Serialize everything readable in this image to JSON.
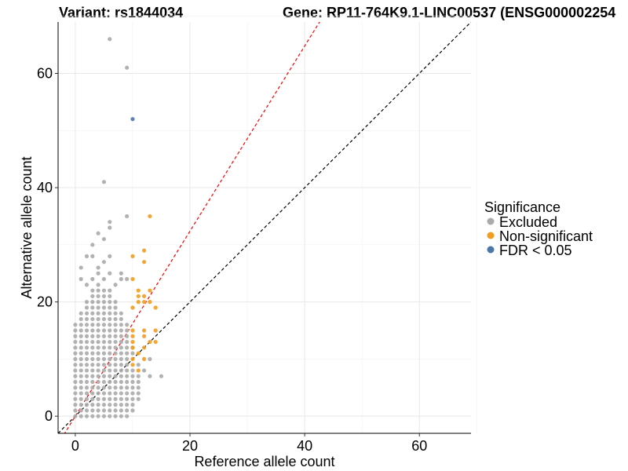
{
  "chart_data": {
    "type": "scatter",
    "title_left": "Variant: rs1844034",
    "title_right": "Gene: RP11-764K9.1-LINC00537 (ENSG000002254",
    "xlabel": "Reference allele count",
    "ylabel": "Alternative allele count",
    "xlim": [
      -3,
      69
    ],
    "ylim": [
      -3,
      69
    ],
    "x_ticks": [
      0,
      20,
      40,
      60
    ],
    "y_ticks": [
      0,
      20,
      40,
      60
    ],
    "x_tick_labels": [
      "0",
      "20",
      "40",
      "60"
    ],
    "y_tick_labels": [
      "0",
      "20",
      "40",
      "60"
    ],
    "grid": true,
    "legend": {
      "title": "Significance",
      "placement": "right",
      "entries": [
        {
          "label": "Excluded",
          "color": "#aaaaaa"
        },
        {
          "label": "Non-significant",
          "color": "#f39c1f"
        },
        {
          "label": "FDR < 0.05",
          "color": "#4a76a8"
        }
      ]
    },
    "reference_lines": [
      {
        "name": "identity",
        "slope": 1,
        "intercept": 0,
        "color": "#000000",
        "dashed": true
      },
      {
        "name": "fit",
        "slope": 1.62,
        "intercept": 0,
        "color": "#ff0000",
        "dashed": true
      }
    ],
    "excluded_grid": [
      {
        "x": 0,
        "ymax": 16
      },
      {
        "x": 1,
        "ymax": 18
      },
      {
        "x": 2,
        "ymax": 20
      },
      {
        "x": 3,
        "ymax": 22
      },
      {
        "x": 4,
        "ymax": 22
      },
      {
        "x": 5,
        "ymax": 22
      },
      {
        "x": 6,
        "ymax": 22
      },
      {
        "x": 7,
        "ymax": 20
      },
      {
        "x": 8,
        "ymax": 18
      },
      {
        "x": 9,
        "ymax": 16
      },
      {
        "x": 10,
        "ymin": 1,
        "ymax": 10
      },
      {
        "x": 11,
        "ymin": 3,
        "ymax": 9
      }
    ],
    "series": [
      {
        "name": "Excluded",
        "color": "#aaaaaa",
        "points": [
          [
            6,
            66
          ],
          [
            9,
            61
          ],
          [
            5,
            41
          ],
          [
            9,
            35
          ],
          [
            6,
            34
          ],
          [
            6,
            33
          ],
          [
            4,
            32
          ],
          [
            5,
            31
          ],
          [
            3,
            30
          ],
          [
            2,
            28
          ],
          [
            3,
            28
          ],
          [
            6,
            28
          ],
          [
            5,
            27
          ],
          [
            1,
            26
          ],
          [
            4,
            26
          ],
          [
            4,
            25
          ],
          [
            6,
            25
          ],
          [
            8,
            25
          ],
          [
            1,
            24
          ],
          [
            3,
            24
          ],
          [
            5,
            24
          ],
          [
            8,
            24
          ],
          [
            9,
            24
          ],
          [
            2,
            23
          ],
          [
            7,
            23
          ],
          [
            4,
            23
          ],
          [
            13,
            10
          ],
          [
            10,
            11
          ],
          [
            10,
            12
          ],
          [
            12,
            8
          ],
          [
            13,
            7
          ],
          [
            15,
            7
          ],
          [
            9,
            8
          ],
          [
            7,
            3
          ],
          [
            8,
            1
          ],
          [
            9,
            4
          ],
          [
            10,
            3
          ],
          [
            10,
            2
          ],
          [
            8,
            7
          ]
        ]
      },
      {
        "name": "Non-significant",
        "color": "#f39c1f",
        "points": [
          [
            13,
            35
          ],
          [
            12,
            29
          ],
          [
            10,
            28
          ],
          [
            12,
            27
          ],
          [
            10,
            24
          ],
          [
            11,
            22
          ],
          [
            13,
            22
          ],
          [
            11,
            21
          ],
          [
            12,
            21
          ],
          [
            11,
            20
          ],
          [
            12,
            20
          ],
          [
            13,
            20
          ],
          [
            10,
            19
          ],
          [
            14,
            19
          ],
          [
            10,
            15
          ],
          [
            12,
            15
          ],
          [
            14,
            15
          ],
          [
            10,
            14
          ],
          [
            12,
            14
          ],
          [
            10,
            13
          ],
          [
            13,
            13
          ],
          [
            14,
            13
          ],
          [
            10,
            12
          ],
          [
            12,
            12
          ],
          [
            11,
            11
          ],
          [
            10,
            10
          ],
          [
            12,
            10
          ],
          [
            10,
            9
          ],
          [
            11,
            8
          ]
        ]
      },
      {
        "name": "FDR < 0.05",
        "color": "#4a76a8",
        "points": [
          [
            10,
            52
          ]
        ]
      }
    ]
  }
}
